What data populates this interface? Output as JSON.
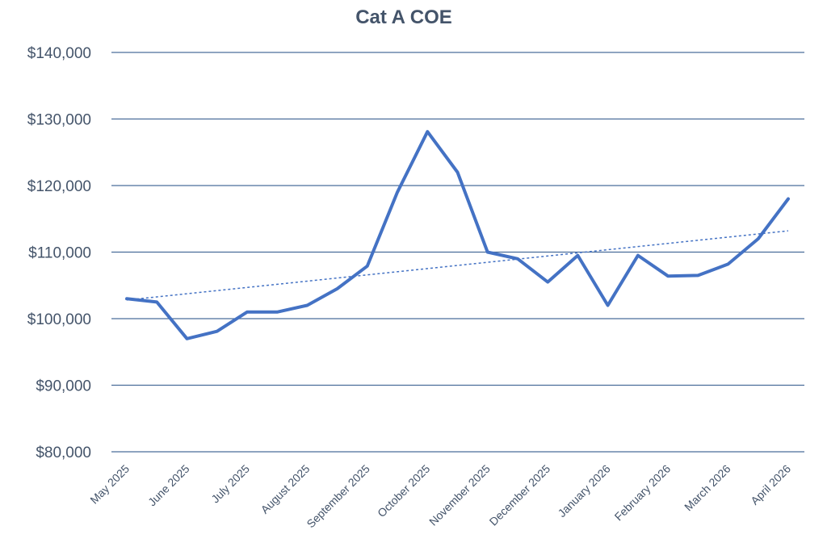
{
  "chart_data": {
    "type": "line",
    "title": "Cat A COE",
    "xlabel": "",
    "ylabel": "",
    "ylim": [
      80000,
      140000
    ],
    "yticks": [
      80000,
      90000,
      100000,
      110000,
      120000,
      130000,
      140000
    ],
    "ytick_labels": [
      "$80,000",
      "$90,000",
      "$100,000",
      "$110,000",
      "$120,000",
      "$130,000",
      "$140,000"
    ],
    "xtick_labels": [
      "May 2025",
      "June 2025",
      "July 2025",
      "August 2025",
      "September 2025",
      "October 2025",
      "November 2025",
      "December 2025",
      "January 2026",
      "February 2026",
      "March 2026",
      "April 2026"
    ],
    "grid": true,
    "legend": "none",
    "series": [
      {
        "x": [
          0,
          0.5,
          1,
          1.5,
          2,
          2.5,
          3,
          3.5,
          4,
          4.5,
          5,
          5.5,
          6,
          6.5,
          7,
          7.5,
          8,
          8.5,
          9,
          9.5,
          10,
          10.5,
          11
        ],
        "values": [
          103000,
          102500,
          97000,
          98100,
          101000,
          101000,
          102000,
          104500,
          107900,
          119000,
          128100,
          122000,
          110000,
          109000,
          105500,
          109500,
          102000,
          109500,
          106400,
          106500,
          108200,
          112000,
          118000
        ],
        "color": "#4472c4",
        "style": "solid"
      },
      {
        "x": [
          0,
          11
        ],
        "values": [
          102800,
          113200
        ],
        "color": "#4472c4",
        "style": "dotted"
      }
    ]
  }
}
